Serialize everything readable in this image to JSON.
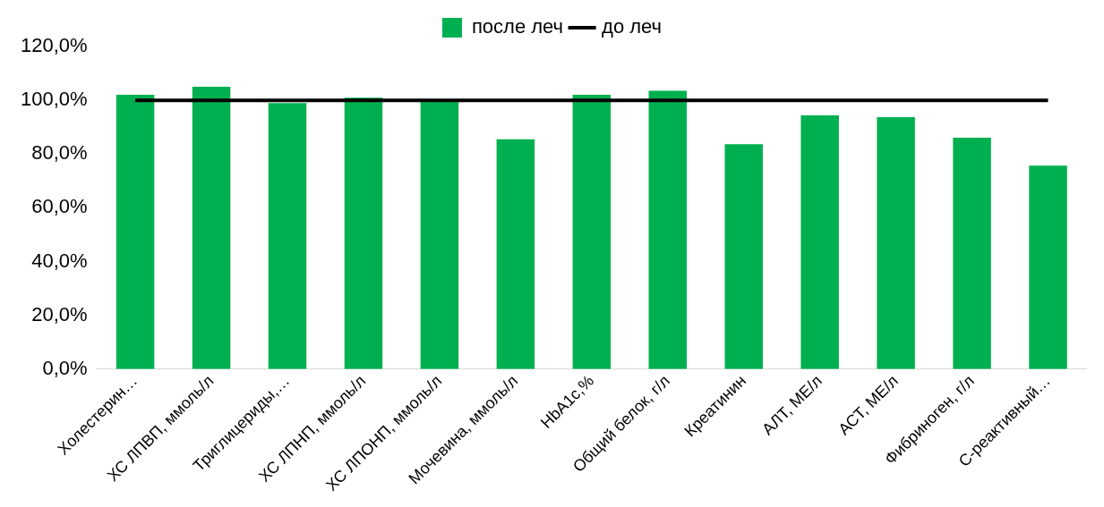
{
  "chart_data": {
    "type": "bar",
    "categories": [
      "Холестерин…",
      "ХС ЛПВП, ммоль/л",
      "Триглицериды,…",
      "ХС ЛПНП, ммоль/л",
      "ХС ЛПОНП, ммоль/л",
      "Мочевина, ммоль/л",
      "HbA1c,%",
      "Общий белок, г/л",
      "Креатинин",
      "АЛТ, МЕ/л",
      "АСТ, МЕ/л",
      "Фибриноген, г/л",
      "С-реактивный…"
    ],
    "series": [
      {
        "name": "после леч",
        "color": "#00b050",
        "values": [
          102,
          105,
          99,
          101,
          100,
          85.5,
          102,
          103.5,
          83.7,
          94.4,
          93.7,
          86.1,
          75.7
        ]
      },
      {
        "name": "до леч",
        "type": "line",
        "color": "#000000",
        "values": [
          100,
          100,
          100,
          100,
          100,
          100,
          100,
          100,
          100,
          100,
          100,
          100,
          100
        ]
      }
    ],
    "ylim": [
      0,
      120
    ],
    "yticks": [
      {
        "value": 0,
        "label": "0,0%"
      },
      {
        "value": 20,
        "label": "20,0%"
      },
      {
        "value": 40,
        "label": "40,0%"
      },
      {
        "value": 60,
        "label": "60,0%"
      },
      {
        "value": 80,
        "label": "80,0%"
      },
      {
        "value": 100,
        "label": "100,0%"
      },
      {
        "value": 120,
        "label": "120,0%"
      }
    ],
    "grid": false,
    "legend": "top",
    "marker": "none"
  }
}
